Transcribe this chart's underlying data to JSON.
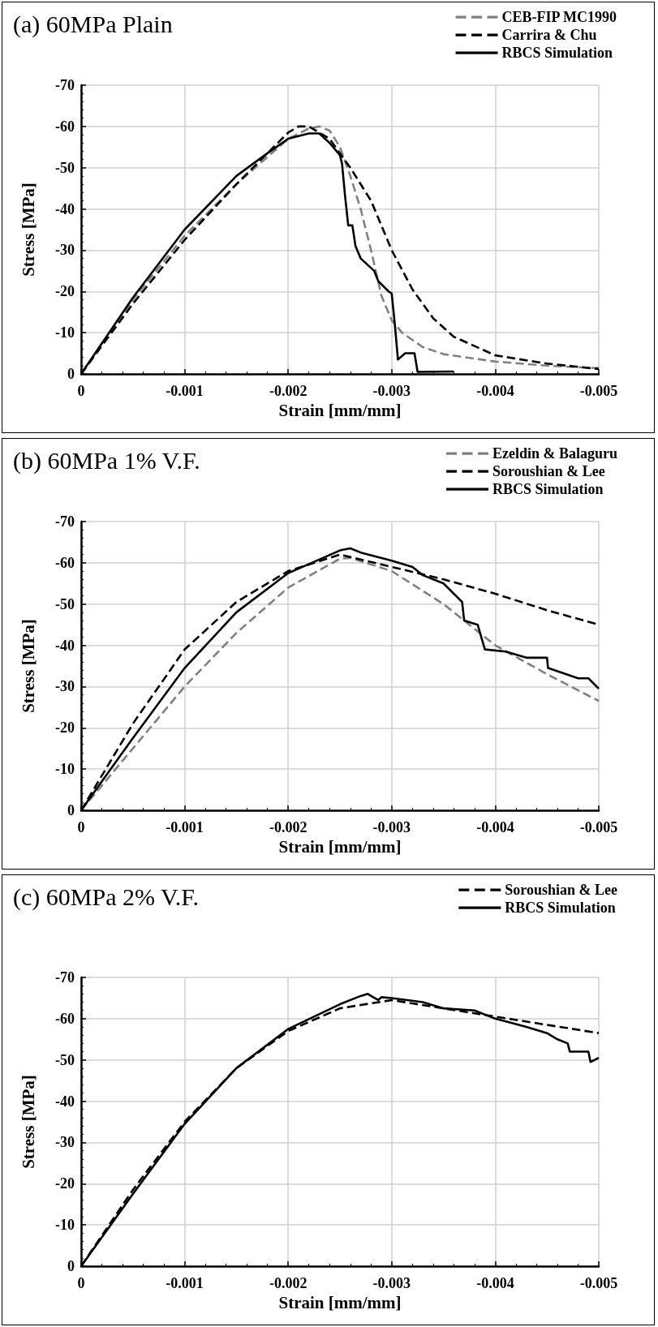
{
  "chart_data": [
    {
      "type": "line",
      "title": "(a) 60MPa Plain",
      "xlabel": "Strain [mm/mm]",
      "ylabel": "Stress [MPa]",
      "xlim": [
        0,
        -0.005
      ],
      "ylim": [
        0,
        -70
      ],
      "xticks": [
        0,
        -0.001,
        -0.002,
        -0.003,
        -0.004,
        -0.005
      ],
      "yticks": [
        0,
        -10,
        -20,
        -30,
        -40,
        -50,
        -60,
        -70
      ],
      "grid": true,
      "legend": "top right",
      "marker": "none",
      "series": [
        {
          "name": "CEB-FIP MC1990",
          "color": "#808080",
          "line_style": "dashed",
          "x": [
            0,
            -0.0005,
            -0.001,
            -0.0015,
            -0.002,
            -0.0022,
            -0.0023,
            -0.0024,
            -0.0025,
            -0.0026,
            -0.0027,
            -0.0028,
            -0.0029,
            -0.003,
            -0.0031,
            -0.0033,
            -0.0035,
            -0.004,
            -0.0045,
            -0.005
          ],
          "values": [
            0,
            -18,
            -33.5,
            -46,
            -57,
            -59.5,
            -60,
            -59,
            -55,
            -48,
            -40,
            -30,
            -19,
            -13,
            -10,
            -6.5,
            -4.8,
            -3,
            -2,
            -1.4
          ]
        },
        {
          "name": "Carrira & Chu",
          "color": "#000000",
          "line_style": "dashed",
          "x": [
            0,
            -0.0005,
            -0.001,
            -0.0015,
            -0.002,
            -0.0021,
            -0.0022,
            -0.0024,
            -0.0026,
            -0.0028,
            -0.003,
            -0.0032,
            -0.0034,
            -0.0036,
            -0.004,
            -0.0045,
            -0.005
          ],
          "values": [
            0,
            -17,
            -32.5,
            -46,
            -58.5,
            -60,
            -60,
            -57,
            -50,
            -42,
            -30,
            -20.5,
            -13.5,
            -9,
            -4.5,
            -2.5,
            -1.2
          ]
        },
        {
          "name": "RBCS Simulation",
          "color": "#000000",
          "line_style": "solid",
          "x": [
            0,
            -0.0005,
            -0.001,
            -0.0015,
            -0.0018,
            -0.002,
            -0.0022,
            -0.0023,
            -0.0024,
            -0.0025,
            -0.00252,
            -0.00255,
            -0.00258,
            -0.00262,
            -0.00265,
            -0.0027,
            -0.00283,
            -0.00287,
            -0.00297,
            -0.003,
            -0.00303,
            -0.00306,
            -0.00313,
            -0.00322,
            -0.00325,
            -0.0036
          ],
          "values": [
            0,
            -18.5,
            -35,
            -48,
            -53.5,
            -57,
            -58.3,
            -58.3,
            -56,
            -53,
            -51,
            -43,
            -36,
            -36,
            -31,
            -28,
            -25,
            -22.5,
            -20,
            -19.5,
            -12,
            -3.5,
            -5,
            -5,
            -0.5,
            -0.6
          ]
        }
      ]
    },
    {
      "type": "line",
      "title": "(b) 60MPa 1% V.F.",
      "xlabel": "Strain [mm/mm]",
      "ylabel": "Stress [MPa]",
      "xlim": [
        0,
        -0.005
      ],
      "ylim": [
        0,
        -70
      ],
      "xticks": [
        0,
        -0.001,
        -0.002,
        -0.003,
        -0.004,
        -0.005
      ],
      "yticks": [
        0,
        -10,
        -20,
        -30,
        -40,
        -50,
        -60,
        -70
      ],
      "grid": true,
      "legend": "top right",
      "marker": "none",
      "series": [
        {
          "name": "Ezeldin & Balaguru",
          "color": "#808080",
          "line_style": "dashed",
          "x": [
            0,
            -0.0005,
            -0.001,
            -0.0015,
            -0.002,
            -0.0025,
            -0.0026,
            -0.003,
            -0.0035,
            -0.004,
            -0.0045,
            -0.005
          ],
          "values": [
            0,
            -15,
            -30,
            -43,
            -54,
            -61,
            -61.2,
            -58,
            -50,
            -40,
            -33,
            -26.5
          ]
        },
        {
          "name": "Soroushian & Lee",
          "color": "#000000",
          "line_style": "dashed",
          "x": [
            0,
            -0.0005,
            -0.001,
            -0.0015,
            -0.002,
            -0.0025,
            -0.003,
            -0.0035,
            -0.004,
            -0.0045,
            -0.005
          ],
          "values": [
            0,
            -21,
            -39,
            -50.5,
            -58,
            -62,
            -59,
            -56,
            -52.5,
            -48.5,
            -45
          ]
        },
        {
          "name": "RBCS Simulation",
          "color": "#000000",
          "line_style": "solid",
          "x": [
            0,
            -0.0005,
            -0.001,
            -0.0015,
            -0.002,
            -0.0025,
            -0.0026,
            -0.0027,
            -0.003,
            -0.0032,
            -0.0033,
            -0.0035,
            -0.00368,
            -0.0037,
            -0.00383,
            -0.0039,
            -0.0041,
            -0.0043,
            -0.0045,
            -0.00451,
            -0.0048,
            -0.0049,
            -0.005
          ],
          "values": [
            0,
            -17.5,
            -34.5,
            -48,
            -57.5,
            -63,
            -63.5,
            -62.5,
            -60.5,
            -59,
            -57,
            -55,
            -50.5,
            -46,
            -45,
            -39,
            -38.5,
            -37,
            -37,
            -34.5,
            -32,
            -32,
            -29.5
          ]
        }
      ]
    },
    {
      "type": "line",
      "title": "(c) 60MPa 2% V.F.",
      "xlabel": "Strain [mm/mm]",
      "ylabel": "Stress [MPa]",
      "xlim": [
        0,
        -0.005
      ],
      "ylim": [
        0,
        -70
      ],
      "xticks": [
        0,
        -0.001,
        -0.002,
        -0.003,
        -0.004,
        -0.005
      ],
      "yticks": [
        0,
        -10,
        -20,
        -30,
        -40,
        -50,
        -60,
        -70
      ],
      "grid": true,
      "legend": "top right",
      "marker": "none",
      "series": [
        {
          "name": "Soroushian & Lee",
          "color": "#000000",
          "line_style": "dashed",
          "x": [
            0,
            -0.0005,
            -0.001,
            -0.0015,
            -0.002,
            -0.0025,
            -0.003,
            -0.0035,
            -0.004,
            -0.0045,
            -0.005
          ],
          "values": [
            0,
            -18.5,
            -35,
            -48,
            -57,
            -62.5,
            -64.5,
            -62.5,
            -60.5,
            -58.5,
            -56.5
          ]
        },
        {
          "name": "RBCS Simulation",
          "color": "#000000",
          "line_style": "solid",
          "x": [
            0,
            -0.0005,
            -0.001,
            -0.0015,
            -0.002,
            -0.0025,
            -0.0027,
            -0.00277,
            -0.0028,
            -0.00287,
            -0.0029,
            -0.003,
            -0.0033,
            -0.0035,
            -0.0038,
            -0.004,
            -0.0043,
            -0.0045,
            -0.0046,
            -0.0047,
            -0.00472,
            -0.0049,
            -0.00492,
            -0.005
          ],
          "values": [
            0,
            -17.5,
            -34.5,
            -48,
            -57.5,
            -63.5,
            -65.5,
            -66,
            -65.5,
            -64.5,
            -65.2,
            -65,
            -64,
            -62.5,
            -62,
            -60,
            -58,
            -56.5,
            -55,
            -54,
            -52,
            -52,
            -49.5,
            -50.5
          ]
        }
      ]
    }
  ]
}
